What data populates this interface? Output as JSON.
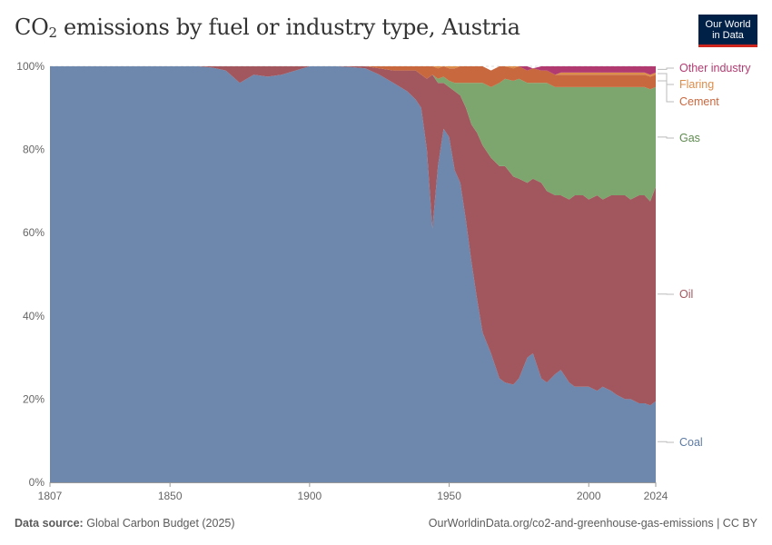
{
  "header": {
    "title_main": "CO",
    "title_sub": "2",
    "title_rest": " emissions by fuel or industry type, Austria",
    "logo_line1": "Our World",
    "logo_line2": "in Data"
  },
  "footer": {
    "source_label": "Data source:",
    "source_value": "Global Carbon Budget (2025)",
    "url": "OurWorldinData.org/co2-and-greenhouse-gas-emissions | CC BY"
  },
  "chart_data": {
    "type": "area",
    "stacked": true,
    "normalized": true,
    "x_range": [
      1807,
      2024
    ],
    "ylim": [
      0,
      100
    ],
    "x_ticks": [
      "1807",
      "1850",
      "1900",
      "1950",
      "2000",
      "2024"
    ],
    "y_ticks": [
      "0%",
      "20%",
      "40%",
      "60%",
      "80%",
      "100%"
    ],
    "grid": "horizontal dashed",
    "legend": "right, labels at series ends",
    "x": [
      1807,
      1860,
      1865,
      1870,
      1875,
      1880,
      1885,
      1890,
      1895,
      1900,
      1905,
      1910,
      1915,
      1920,
      1925,
      1930,
      1935,
      1938,
      1940,
      1942,
      1944,
      1946,
      1948,
      1950,
      1952,
      1954,
      1956,
      1958,
      1960,
      1962,
      1965,
      1968,
      1970,
      1973,
      1975,
      1978,
      1980,
      1983,
      1985,
      1988,
      1990,
      1993,
      1995,
      1998,
      2000,
      2003,
      2005,
      2008,
      2010,
      2013,
      2015,
      2018,
      2020,
      2022,
      2024
    ],
    "series": [
      {
        "name": "Coal",
        "color": "#6d87ad",
        "values": [
          100,
          100,
          99.7,
          99,
          96,
          98,
          97.5,
          98,
          99,
          100,
          100,
          100,
          99.8,
          99.5,
          98,
          96,
          94,
          92,
          90,
          80,
          61,
          76,
          85,
          83,
          75,
          72,
          63,
          53,
          44,
          36,
          31,
          25,
          24,
          23.5,
          25,
          30,
          31,
          25,
          24,
          26,
          27,
          24,
          23,
          23,
          23,
          22,
          23,
          22,
          21,
          20,
          20,
          19,
          19,
          18.5,
          19.5
        ]
      },
      {
        "name": "Oil",
        "color": "#a2575e",
        "values": [
          0,
          0,
          0.3,
          1,
          4,
          2,
          2.5,
          2,
          1,
          0,
          0,
          0,
          0.2,
          0.5,
          1.5,
          3,
          5,
          7,
          8,
          17,
          37,
          20,
          11,
          12,
          19,
          21,
          27,
          33,
          40,
          45,
          47,
          51,
          52,
          50,
          48,
          42,
          42,
          47,
          46,
          43,
          42,
          44,
          46,
          46,
          45,
          47,
          45,
          47,
          48,
          49,
          48,
          50,
          50,
          49,
          51.5
        ]
      },
      {
        "name": "Gas",
        "color": "#7da66e",
        "values": [
          0,
          0,
          0,
          0,
          0,
          0,
          0,
          0,
          0,
          0,
          0,
          0,
          0,
          0,
          0,
          0,
          0,
          0,
          0,
          0,
          0,
          1,
          1.5,
          1.5,
          2,
          3,
          6,
          10,
          12,
          15,
          17,
          20,
          21,
          23,
          24,
          24,
          23,
          24,
          26,
          26,
          26,
          27,
          26,
          26,
          27,
          26,
          27,
          26,
          26,
          26,
          27,
          26,
          26,
          27,
          24
        ]
      },
      {
        "name": "Cement",
        "color": "#c8683f",
        "values": [
          0,
          0,
          0,
          0,
          0,
          0,
          0,
          0,
          0,
          0,
          0,
          0,
          0,
          0,
          0.5,
          1,
          1,
          1,
          2,
          3,
          2,
          2.5,
          2.5,
          3,
          3.5,
          4,
          4,
          4,
          4,
          4,
          4,
          4,
          3,
          3,
          3,
          3,
          3.5,
          3,
          3,
          3,
          3,
          3,
          3,
          3,
          3,
          3,
          3,
          3,
          3,
          3,
          3,
          3,
          3,
          3,
          3
        ]
      },
      {
        "name": "Flaring",
        "color": "#dc8d4a",
        "values": [
          0,
          0,
          0,
          0,
          0,
          0,
          0,
          0,
          0,
          0,
          0,
          0,
          0,
          0,
          0,
          0,
          0,
          0,
          0,
          0,
          0,
          0.5,
          0,
          0.5,
          0.5,
          0,
          0,
          0,
          0,
          0,
          0,
          0,
          0,
          0.5,
          0,
          0,
          0,
          0,
          0,
          0,
          0.5,
          0.5,
          0.5,
          0.5,
          0.5,
          0.5,
          0.5,
          0.5,
          0.5,
          0.5,
          0.5,
          0.5,
          0.5,
          0.5,
          0.5
        ]
      },
      {
        "name": "Other industry",
        "color": "#b13b71",
        "values": [
          0,
          0,
          0,
          0,
          0,
          0,
          0,
          0,
          0,
          0,
          0,
          0,
          0,
          0,
          0,
          0,
          0,
          0,
          0,
          0,
          0,
          0,
          0,
          0,
          0,
          0,
          0,
          0,
          0,
          0,
          0,
          0,
          0,
          0,
          0,
          1,
          0,
          1,
          1,
          2,
          1.5,
          1.5,
          1.5,
          1.5,
          1.5,
          1.5,
          1.5,
          1.5,
          1.5,
          1.5,
          1.5,
          1.5,
          1.5,
          2,
          1.5
        ]
      }
    ],
    "labels": [
      {
        "name": "Other industry",
        "color": "#b13b71"
      },
      {
        "name": "Flaring",
        "color": "#dc8d4a"
      },
      {
        "name": "Cement",
        "color": "#c8683f"
      },
      {
        "name": "Gas",
        "color": "#5e8a4f"
      },
      {
        "name": "Oil",
        "color": "#a2575e"
      },
      {
        "name": "Coal",
        "color": "#5d7aa3"
      }
    ]
  }
}
